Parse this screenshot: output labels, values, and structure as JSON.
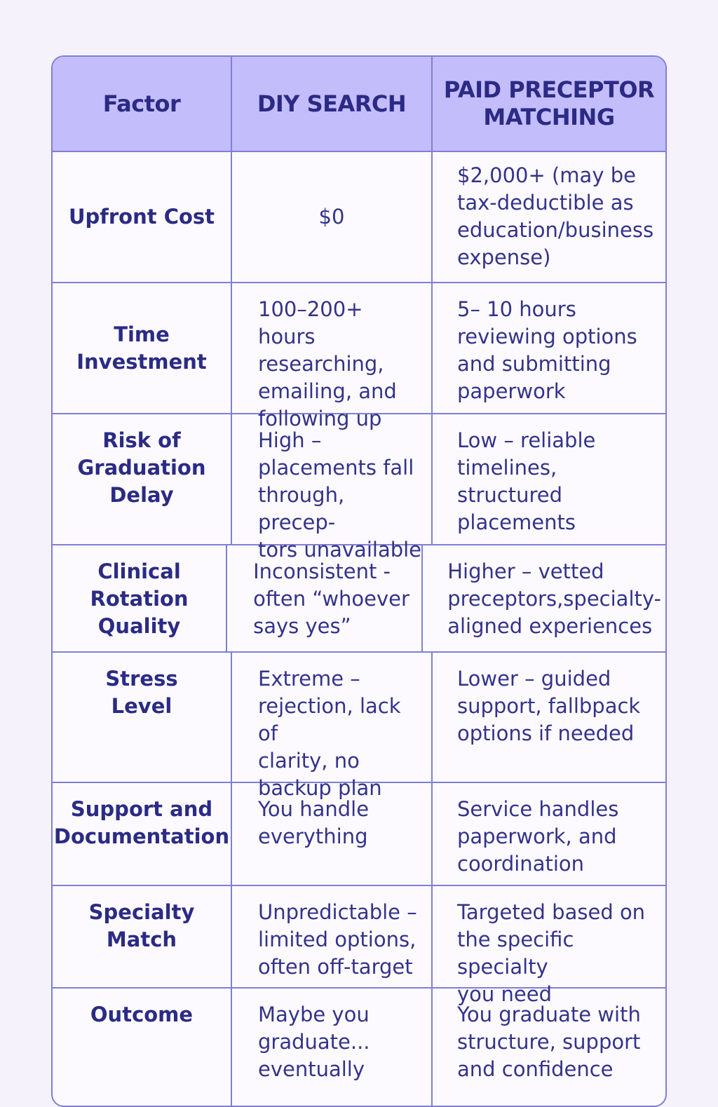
{
  "table": {
    "headers": [
      "Factor",
      "DIY SEARCH",
      "PAID PRECEPTOR\nMATCHING"
    ],
    "rows": [
      {
        "factor": "Upfront Cost",
        "diy": "$0",
        "paid": "$2,000+ (may be\ntax-deductible as\neducation/business\nexpense)"
      },
      {
        "factor": "Time\nInvestment",
        "diy": "100–200+ hours\nresearching,\nemailing, and\nfollowing up",
        "paid": "5– 10 hours\nreviewing options\nand submitting\npaperwork"
      },
      {
        "factor": "Risk of\nGraduation\nDelay",
        "diy": "High –\nplacements fall\nthrough, precep-\ntors unavailable",
        "paid": "Low – reliable\ntimelines, structured\nplacements"
      },
      {
        "factor": "Clinical\nRotation\nQuality",
        "diy": "Inconsistent -\noften “whoever\nsays yes”",
        "paid": "Higher – vetted\npreceptors,specialty-\naligned experiences"
      },
      {
        "factor": "Stress\nLevel",
        "diy": "Extreme –\nrejection, lack of\nclarity, no\nbackup plan",
        "paid": "Lower – guided\nsupport, fallbpack\noptions if needed"
      },
      {
        "factor": "Support and\nDocumentation",
        "diy": "You handle\neverything",
        "paid": "Service handles\npaperwork, and\ncoordination"
      },
      {
        "factor": "Specialty\nMatch",
        "diy": "Unpredictable –\nlimited options,\noften off-target",
        "paid": "Targeted based on\nthe specific specialty\nyou need"
      },
      {
        "factor": "Outcome",
        "diy": "Maybe you\ngraduate...\neventually",
        "paid": "You graduate with\nstructure, support\nand confidence"
      }
    ]
  }
}
